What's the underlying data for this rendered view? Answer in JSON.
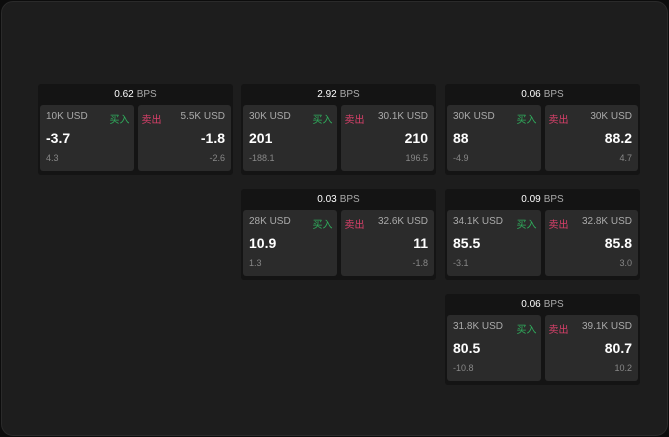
{
  "unit": "BPS",
  "buy_label": "买入",
  "sell_label": "卖出",
  "colors": {
    "buy": "#2fae5c",
    "sell": "#d8406a"
  },
  "cards": [
    {
      "spread": "0.62",
      "bid": {
        "size": "10K USD",
        "price": "-3.7",
        "change": "4.3"
      },
      "ask": {
        "size": "5.5K USD",
        "price": "-1.8",
        "change": "-2.6"
      }
    },
    {
      "spread": "2.92",
      "bid": {
        "size": "30K USD",
        "price": "201",
        "change": "-188.1"
      },
      "ask": {
        "size": "30.1K USD",
        "price": "210",
        "change": "196.5"
      }
    },
    {
      "spread": "0.06",
      "bid": {
        "size": "30K USD",
        "price": "88",
        "change": "-4.9"
      },
      "ask": {
        "size": "30K USD",
        "price": "88.2",
        "change": "4.7"
      }
    },
    {
      "spread": "0.03",
      "bid": {
        "size": "28K USD",
        "price": "10.9",
        "change": "1.3"
      },
      "ask": {
        "size": "32.6K USD",
        "price": "11",
        "change": "-1.8"
      }
    },
    {
      "spread": "0.09",
      "bid": {
        "size": "34.1K USD",
        "price": "85.5",
        "change": "-3.1"
      },
      "ask": {
        "size": "32.8K USD",
        "price": "85.8",
        "change": "3.0"
      }
    },
    {
      "spread": "0.06",
      "bid": {
        "size": "31.8K USD",
        "price": "80.5",
        "change": "-10.8"
      },
      "ask": {
        "size": "39.1K USD",
        "price": "80.7",
        "change": "10.2"
      }
    }
  ]
}
